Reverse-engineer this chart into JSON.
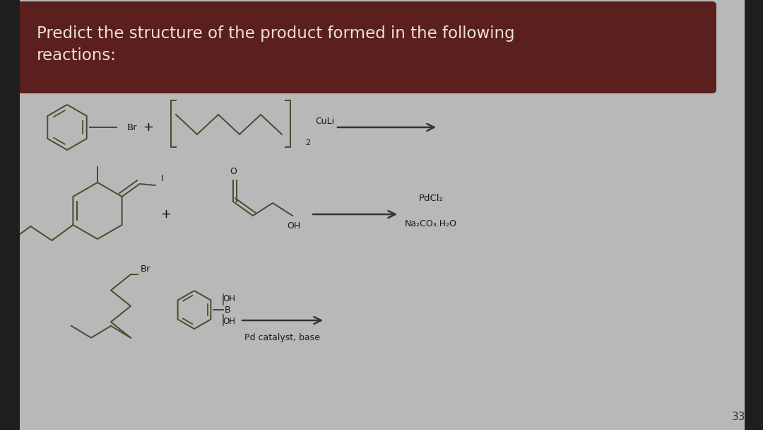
{
  "title_text": "Predict the structure of the product formed in the following\nreactions:",
  "title_bg_color": "#5c1f1f",
  "title_text_color": "#ede0d4",
  "slide_bg_color": "#b8b8b8",
  "body_bg_color": "#c8c8c8",
  "page_number": "33",
  "reaction2_label1": "PdCl₂",
  "reaction2_label2": "Na₂CO₃.H₂O",
  "reaction3_label1": "Pd catalyst, base",
  "line_color": "#4a4a2a",
  "text_color": "#1a1a1a"
}
